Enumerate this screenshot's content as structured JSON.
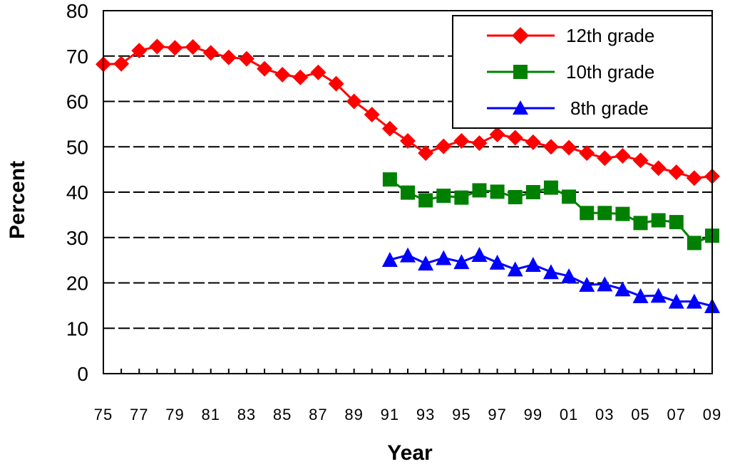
{
  "chart_data": {
    "type": "line",
    "xlabel": "Year",
    "ylabel": "Percent",
    "ylim": [
      0,
      80
    ],
    "yticks": [
      0,
      10,
      20,
      30,
      40,
      50,
      60,
      70,
      80
    ],
    "grid": "horizontal dashed",
    "legend_position": "top-right",
    "categories": [
      "75",
      "76",
      "77",
      "78",
      "79",
      "80",
      "81",
      "82",
      "83",
      "84",
      "85",
      "86",
      "87",
      "88",
      "89",
      "90",
      "91",
      "92",
      "93",
      "94",
      "95",
      "96",
      "97",
      "98",
      "99",
      "00",
      "01",
      "02",
      "03",
      "04",
      "05",
      "06",
      "07",
      "08",
      "09"
    ],
    "xtick_labels": [
      "75",
      "77",
      "79",
      "81",
      "83",
      "85",
      "87",
      "89",
      "91",
      "93",
      "95",
      "97",
      "99",
      "01",
      "03",
      "05",
      "07",
      "09"
    ],
    "series": [
      {
        "name": "12th grade",
        "color": "#ff0000",
        "marker": "diamond",
        "values": [
          68.2,
          68.3,
          71.2,
          72.1,
          71.8,
          72.0,
          70.7,
          69.7,
          69.4,
          67.2,
          65.9,
          65.3,
          66.4,
          63.9,
          60.0,
          57.1,
          54.0,
          51.3,
          48.6,
          50.1,
          51.3,
          50.8,
          52.7,
          52.0,
          51.0,
          50.0,
          49.8,
          48.6,
          47.5,
          48.0,
          47.0,
          45.3,
          44.4,
          43.1,
          43.5
        ]
      },
      {
        "name": "10th grade",
        "color": "#008000",
        "marker": "square",
        "values": [
          null,
          null,
          null,
          null,
          null,
          null,
          null,
          null,
          null,
          null,
          null,
          null,
          null,
          null,
          null,
          null,
          42.8,
          39.9,
          38.2,
          39.2,
          38.8,
          40.4,
          40.1,
          38.9,
          40.0,
          41.0,
          39.0,
          35.4,
          35.4,
          35.2,
          33.2,
          33.8,
          33.4,
          28.8,
          30.4
        ]
      },
      {
        "name": "8th grade",
        "color": "#0000ff",
        "marker": "triangle",
        "values": [
          null,
          null,
          null,
          null,
          null,
          null,
          null,
          null,
          null,
          null,
          null,
          null,
          null,
          null,
          null,
          null,
          25.1,
          26.1,
          24.3,
          25.5,
          24.6,
          26.2,
          24.5,
          23.0,
          24.0,
          22.4,
          21.5,
          19.6,
          19.7,
          18.6,
          17.1,
          17.2,
          15.9,
          15.9,
          14.9
        ]
      }
    ]
  }
}
